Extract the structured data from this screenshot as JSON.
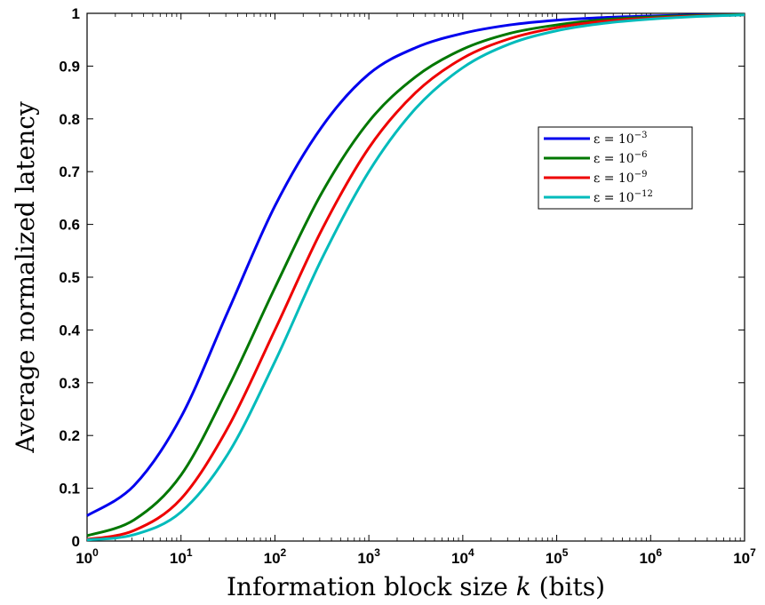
{
  "chart_data": {
    "type": "line",
    "xlabel_prefix": "Information block size ",
    "xlabel_var": "k",
    "xlabel_suffix": " (bits)",
    "ylabel": "Average normalized latency",
    "x_scale": "log",
    "xlim": [
      1,
      10000000
    ],
    "ylim": [
      0,
      1
    ],
    "grid": false,
    "legend_position": "right",
    "x_ticks": [
      {
        "value": 1,
        "base": "10",
        "exp": "0"
      },
      {
        "value": 10,
        "base": "10",
        "exp": "1"
      },
      {
        "value": 100,
        "base": "10",
        "exp": "2"
      },
      {
        "value": 1000,
        "base": "10",
        "exp": "3"
      },
      {
        "value": 10000,
        "base": "10",
        "exp": "4"
      },
      {
        "value": 100000,
        "base": "10",
        "exp": "5"
      },
      {
        "value": 1000000,
        "base": "10",
        "exp": "6"
      },
      {
        "value": 10000000,
        "base": "10",
        "exp": "7"
      }
    ],
    "y_ticks": [
      {
        "value": 0,
        "label": "0"
      },
      {
        "value": 0.1,
        "label": "0.1"
      },
      {
        "value": 0.2,
        "label": "0.2"
      },
      {
        "value": 0.3,
        "label": "0.3"
      },
      {
        "value": 0.4,
        "label": "0.4"
      },
      {
        "value": 0.5,
        "label": "0.5"
      },
      {
        "value": 0.6,
        "label": "0.6"
      },
      {
        "value": 0.7,
        "label": "0.7"
      },
      {
        "value": 0.8,
        "label": "0.8"
      },
      {
        "value": 0.9,
        "label": "0.9"
      },
      {
        "value": 1,
        "label": "1"
      }
    ],
    "x": [
      1,
      3.16,
      10,
      31.6,
      100,
      316,
      1000,
      3160,
      10000,
      31600,
      100000,
      316000,
      1000000,
      3160000,
      10000000
    ],
    "series": [
      {
        "name_prefix": "ε = 10",
        "name_exp": "−3",
        "color": "#0000ee",
        "values": [
          0.048,
          0.105,
          0.235,
          0.435,
          0.635,
          0.785,
          0.885,
          0.935,
          0.962,
          0.978,
          0.987,
          0.992,
          0.995,
          0.997,
          0.998
        ]
      },
      {
        "name_prefix": "ε = 10",
        "name_exp": "−6",
        "color": "#007700",
        "values": [
          0.01,
          0.04,
          0.125,
          0.29,
          0.48,
          0.66,
          0.795,
          0.88,
          0.932,
          0.962,
          0.978,
          0.988,
          0.993,
          0.996,
          0.998
        ]
      },
      {
        "name_prefix": "ε = 10",
        "name_exp": "−9",
        "color": "#ee0000",
        "values": [
          0.003,
          0.02,
          0.08,
          0.215,
          0.4,
          0.59,
          0.745,
          0.85,
          0.915,
          0.952,
          0.973,
          0.985,
          0.991,
          0.995,
          0.997
        ]
      },
      {
        "name_prefix": "ε = 10",
        "name_exp": "−12",
        "color": "#00bbbb",
        "values": [
          0.002,
          0.012,
          0.055,
          0.165,
          0.34,
          0.535,
          0.7,
          0.82,
          0.897,
          0.942,
          0.967,
          0.981,
          0.989,
          0.994,
          0.997
        ]
      }
    ]
  }
}
